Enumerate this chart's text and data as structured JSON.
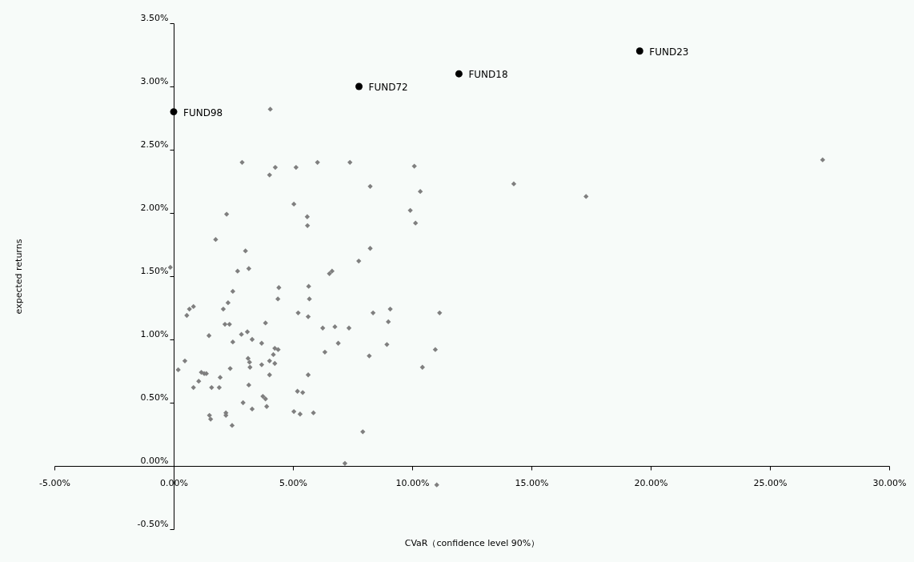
{
  "chart_data": {
    "type": "scatter",
    "xlabel": "CVaR（confidence level 90%）",
    "ylabel": "expected returns",
    "xlim": [
      -5,
      30
    ],
    "xticks": [
      {
        "value": -5,
        "label": "-5.00%"
      },
      {
        "value": 0,
        "label": "0.00%"
      },
      {
        "value": 5,
        "label": "5.00%"
      },
      {
        "value": 10,
        "label": "10.00%"
      },
      {
        "value": 15,
        "label": "15.00%"
      },
      {
        "value": 20,
        "label": "20.00%"
      },
      {
        "value": 25,
        "label": "25.00%"
      },
      {
        "value": 30,
        "label": "30.00%"
      }
    ],
    "ylim": [
      -0.5,
      3.5
    ],
    "yticks": [
      {
        "value": -0.5,
        "label": "-0.50%"
      },
      {
        "value": 0,
        "label": "0.00%"
      },
      {
        "value": 0.5,
        "label": "0.50%"
      },
      {
        "value": 1,
        "label": "1.00%"
      },
      {
        "value": 1.5,
        "label": "1.50%"
      },
      {
        "value": 2,
        "label": "2.00%"
      },
      {
        "value": 2.5,
        "label": "2.50%"
      },
      {
        "value": 3,
        "label": "3.00%"
      },
      {
        "value": 3.5,
        "label": "3.50%"
      }
    ],
    "grid": false,
    "series": [
      {
        "color": "#7f7f7f",
        "marker": "diamond",
        "x": [
          1.48,
          2.84,
          3.09,
          2.48,
          3.29,
          3.69,
          4.24,
          4.38,
          4.18,
          0.47,
          0.19,
          3.12,
          3.18,
          3.2,
          2.37,
          3.69,
          4.02,
          4.24,
          4.02,
          1.16,
          1.28,
          1.37,
          1.95,
          1.05,
          0.83,
          1.59,
          1.91,
          3.15,
          5.64,
          5.19,
          5.41,
          3.74,
          3.85,
          2.91,
          3.29,
          3.9,
          5.04,
          5.3,
          5.86,
          1.5,
          1.55,
          2.19,
          2.19,
          2.45,
          2.87,
          4.02,
          4.26,
          5.13,
          6.03,
          5.04,
          2.22,
          5.6,
          5.61,
          1.76,
          3.01,
          -0.14,
          2.68,
          3.15,
          2.48,
          4.41,
          5.66,
          4.37,
          5.69,
          2.28,
          0.55,
          0.66,
          0.83,
          2.08,
          2.15,
          2.34,
          3.85,
          5.22,
          5.64,
          7.39,
          10.09,
          8.24,
          10.34,
          9.92,
          10.14,
          8.24,
          7.76,
          6.53,
          6.64,
          8.36,
          9.08,
          9.0,
          11.15,
          6.25,
          6.76,
          7.35,
          6.9,
          6.34,
          8.2,
          8.94,
          10.97,
          10.43,
          7.93,
          7.18,
          11.03,
          14.26,
          17.29,
          27.21,
          4.05
        ],
        "values": [
          1.03,
          1.04,
          1.06,
          0.98,
          1.0,
          0.97,
          0.93,
          0.92,
          0.88,
          0.83,
          0.76,
          0.85,
          0.82,
          0.78,
          0.77,
          0.8,
          0.83,
          0.81,
          0.72,
          0.74,
          0.73,
          0.73,
          0.7,
          0.67,
          0.62,
          0.62,
          0.62,
          0.64,
          0.72,
          0.59,
          0.58,
          0.55,
          0.53,
          0.5,
          0.45,
          0.47,
          0.43,
          0.41,
          0.42,
          0.4,
          0.37,
          0.42,
          0.4,
          0.32,
          2.4,
          2.3,
          2.36,
          2.36,
          2.4,
          2.07,
          1.99,
          1.97,
          1.9,
          1.79,
          1.7,
          1.57,
          1.54,
          1.56,
          1.38,
          1.41,
          1.42,
          1.32,
          1.32,
          1.29,
          1.19,
          1.24,
          1.26,
          1.24,
          1.12,
          1.12,
          1.13,
          1.21,
          1.18,
          2.4,
          2.37,
          2.21,
          2.17,
          2.02,
          1.92,
          1.72,
          1.62,
          1.52,
          1.54,
          1.21,
          1.24,
          1.14,
          1.21,
          1.09,
          1.1,
          1.09,
          0.97,
          0.9,
          0.87,
          0.96,
          0.92,
          0.78,
          0.27,
          0.02,
          -0.15,
          2.23,
          2.13,
          2.42,
          2.82
        ]
      },
      {
        "color": "#000000",
        "marker": "circle",
        "x": [
          0.0,
          7.77,
          11.96,
          19.54
        ],
        "values": [
          2.8,
          3.0,
          3.1,
          3.28
        ],
        "value_labels": [
          "FUND98",
          "FUND72",
          "FUND18",
          "FUND23"
        ]
      }
    ]
  }
}
